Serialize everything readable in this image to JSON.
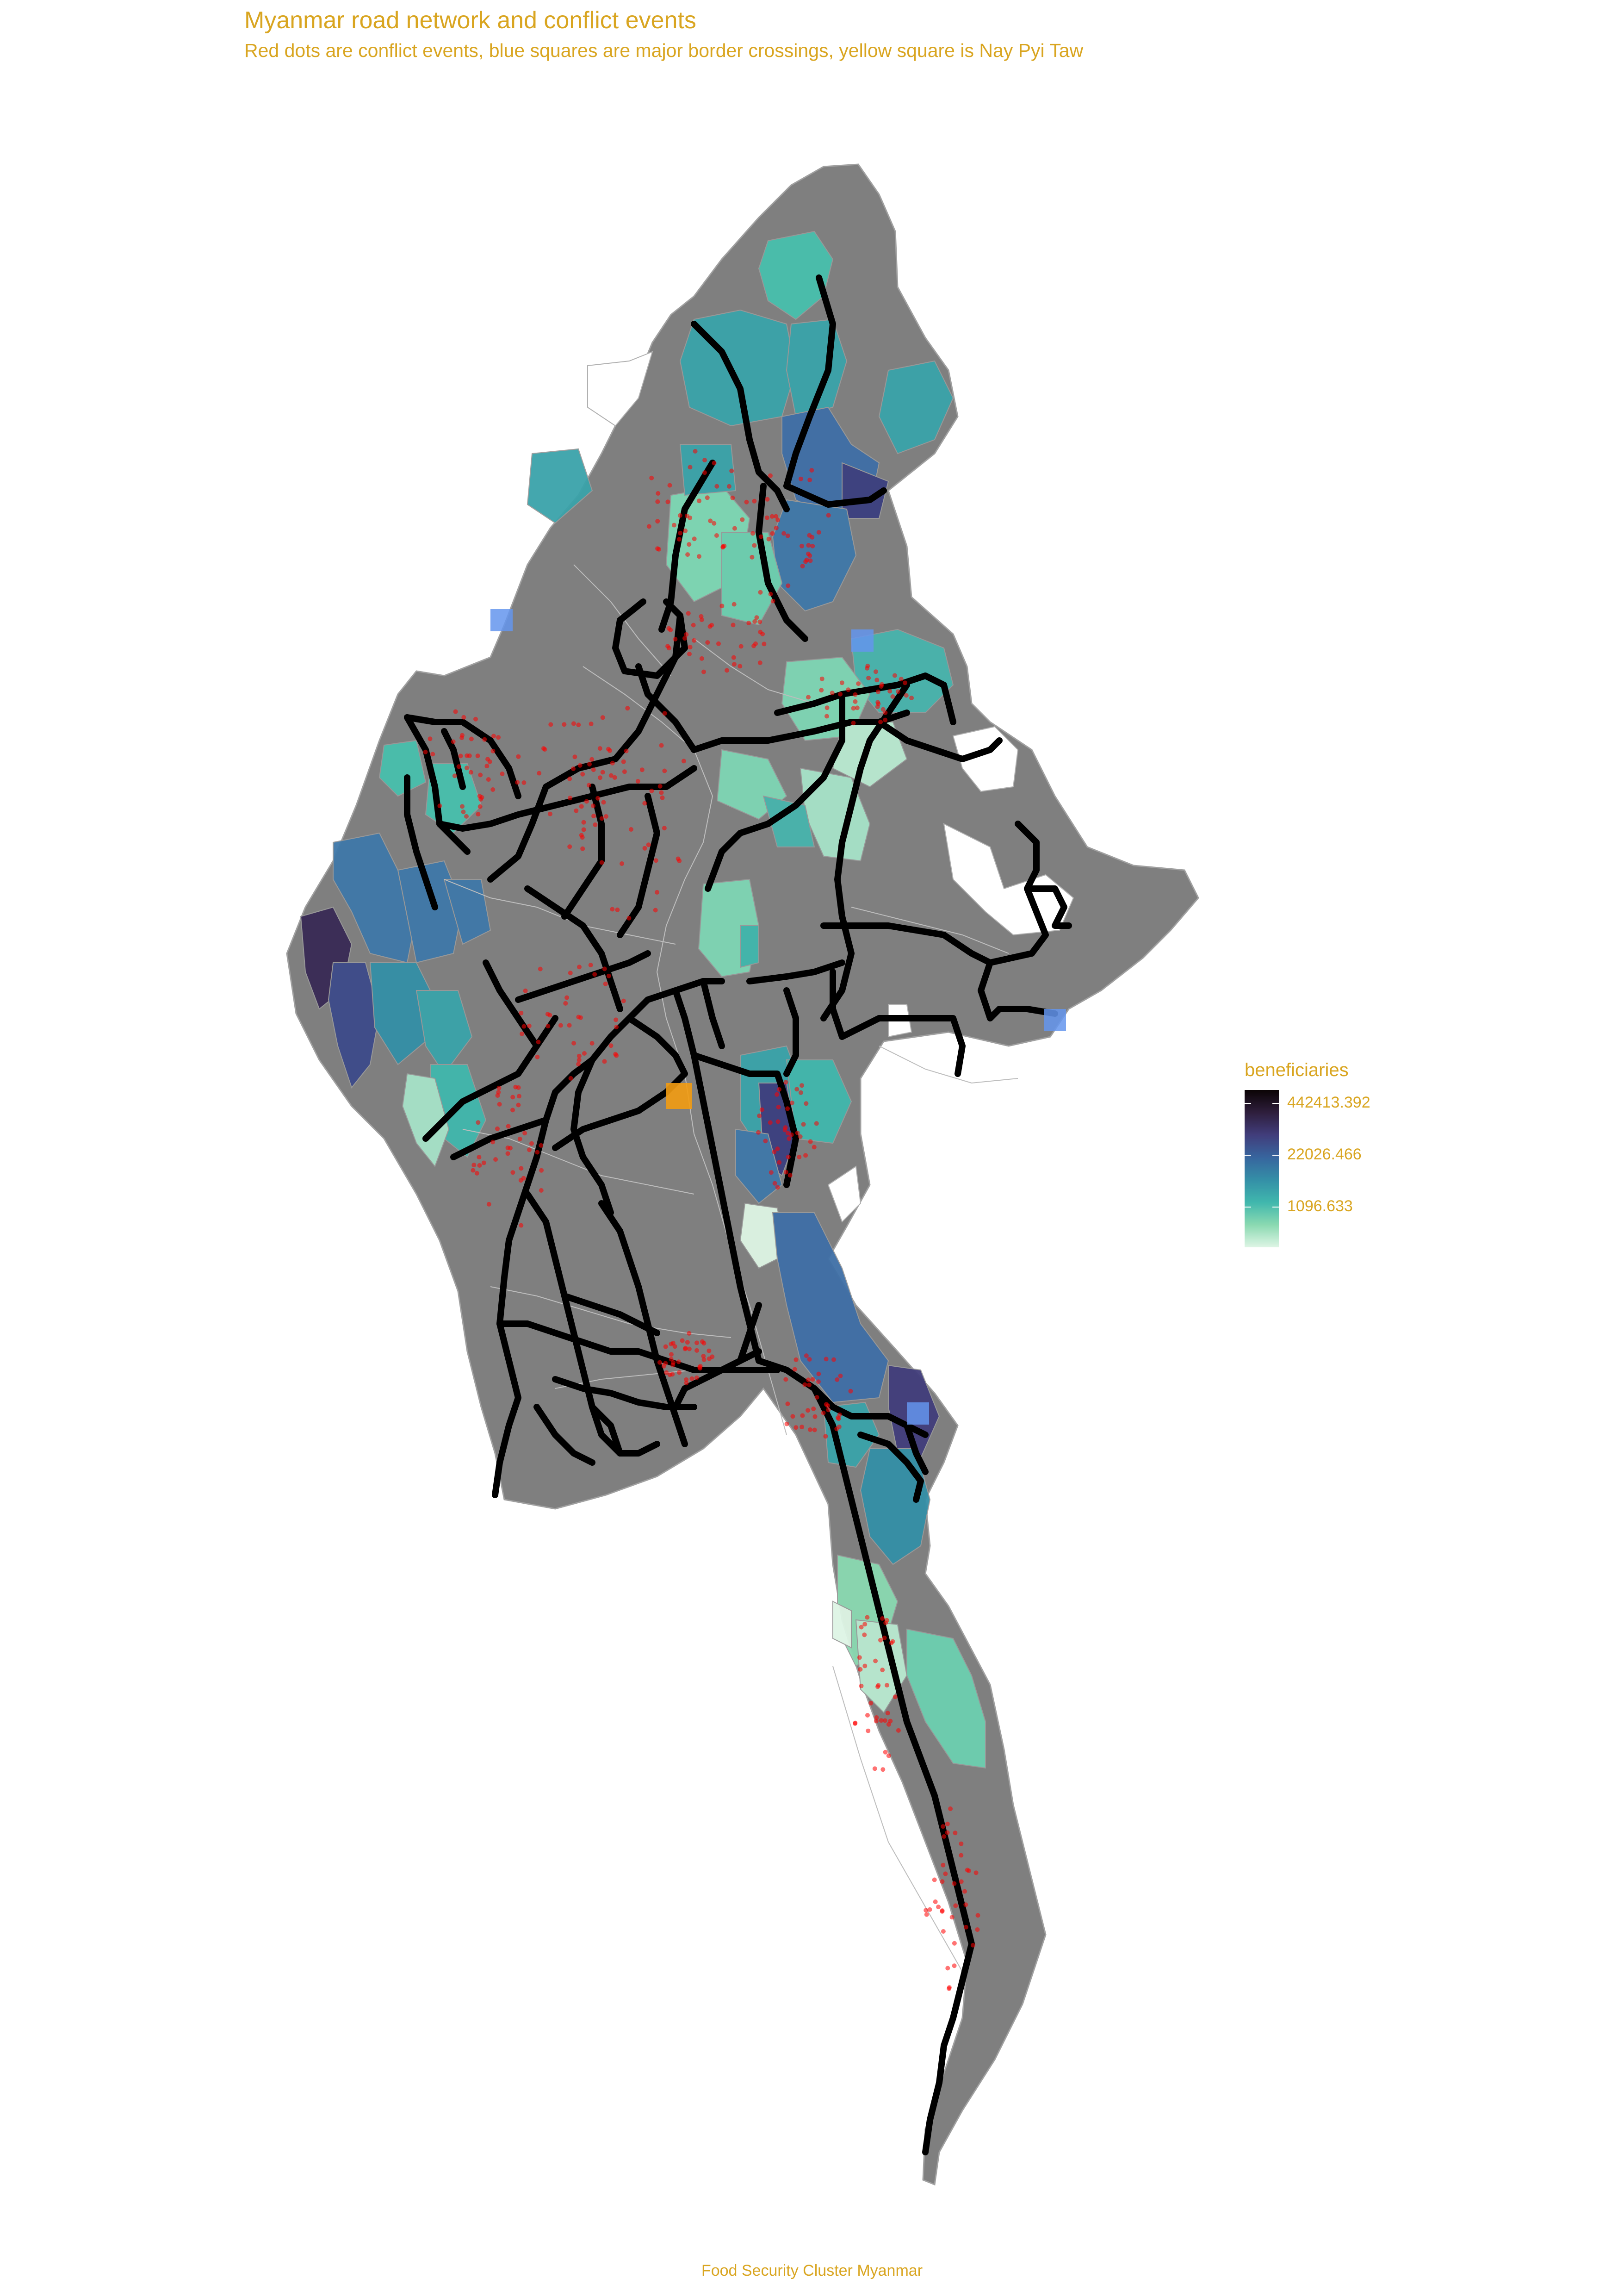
{
  "title": "Myanmar road network and conflict events",
  "subtitle": "Red dots are conflict events, blue squares are major border crossings, yellow square is Nay Pyi Taw",
  "caption": "Food Security Cluster Myanmar",
  "legend": {
    "title": "beneficiaries",
    "ticks": [
      "442413.392",
      "22026.466",
      "1096.633"
    ]
  },
  "colors": {
    "text": "#d9a520",
    "country_fill": "#7f7f7f",
    "boundary": "#bfbfbf",
    "road": "#000000",
    "conflict": "#ff0000",
    "border_crossing": "#6495ed",
    "capital": "#f39c12",
    "scale": [
      "#0b0405",
      "#2e1e3c",
      "#413d7b",
      "#37659e",
      "#348fa7",
      "#40b7ad",
      "#8ad9b1",
      "#def5e5"
    ]
  },
  "map": {
    "markers": [
      {
        "type": "border_crossing"
      },
      {
        "type": "border_crossing"
      },
      {
        "type": "border_crossing"
      },
      {
        "type": "border_crossing"
      },
      {
        "type": "capital"
      }
    ]
  }
}
